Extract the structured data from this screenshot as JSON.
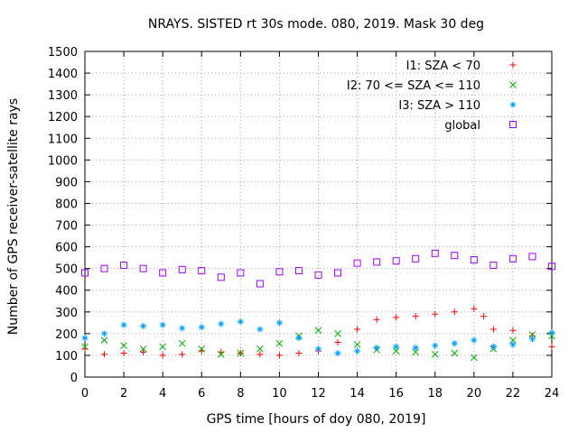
{
  "chart_data": {
    "type": "scatter",
    "title": "NRAYS. SISTED rt 30s mode. 080, 2019. Mask 30 deg",
    "xlabel": "GPS time [hours of doy 080, 2019]",
    "ylabel": "Number of GPS receiver-satellite rays",
    "xlim": [
      0,
      24
    ],
    "ylim": [
      0,
      1500
    ],
    "xticks": [
      0,
      2,
      4,
      6,
      8,
      10,
      12,
      14,
      16,
      18,
      20,
      22,
      24
    ],
    "yticks": [
      0,
      100,
      200,
      300,
      400,
      500,
      600,
      700,
      800,
      900,
      1000,
      1100,
      1200,
      1300,
      1400,
      1500
    ],
    "grid": true,
    "legend_position": "top-right",
    "series": [
      {
        "name": "I1: SZA < 70",
        "color": "#ff0000",
        "marker": "+",
        "x": [
          0,
          1,
          2,
          3,
          4,
          5,
          6,
          7,
          8,
          9,
          10,
          11,
          12,
          13,
          14,
          15,
          16,
          17,
          18,
          19,
          20,
          20.5,
          21,
          22,
          23,
          24
        ],
        "y": [
          130,
          105,
          110,
          115,
          100,
          105,
          120,
          115,
          110,
          105,
          100,
          110,
          120,
          160,
          220,
          265,
          275,
          280,
          290,
          300,
          315,
          280,
          220,
          215,
          190,
          140
        ]
      },
      {
        "name": "I2: 70 <= SZA <= 110",
        "color": "#00b000",
        "marker": "x",
        "x": [
          0,
          1,
          2,
          3,
          4,
          5,
          6,
          7,
          8,
          9,
          10,
          11,
          12,
          13,
          14,
          15,
          16,
          17,
          18,
          19,
          20,
          21,
          22,
          23,
          24
        ],
        "y": [
          140,
          170,
          145,
          130,
          140,
          155,
          130,
          105,
          110,
          130,
          155,
          190,
          215,
          200,
          150,
          125,
          120,
          115,
          105,
          110,
          90,
          130,
          170,
          195,
          190
        ]
      },
      {
        "name": "I3: SZA > 110",
        "color": "#00a0ff",
        "marker": "*",
        "x": [
          0,
          1,
          2,
          3,
          4,
          5,
          6,
          7,
          8,
          9,
          10,
          11,
          12,
          13,
          14,
          15,
          16,
          17,
          18,
          19,
          20,
          21,
          22,
          23,
          24
        ],
        "y": [
          180,
          200,
          240,
          235,
          240,
          225,
          230,
          245,
          255,
          220,
          250,
          180,
          130,
          110,
          120,
          135,
          140,
          135,
          145,
          155,
          170,
          140,
          150,
          175,
          205
        ]
      },
      {
        "name": "global",
        "color": "#a000ff",
        "marker": "square",
        "x": [
          0,
          1,
          2,
          3,
          4,
          5,
          6,
          7,
          8,
          9,
          10,
          11,
          12,
          13,
          14,
          15,
          16,
          17,
          18,
          19,
          20,
          21,
          22,
          23,
          24
        ],
        "y": [
          480,
          500,
          515,
          500,
          480,
          495,
          490,
          460,
          480,
          430,
          485,
          490,
          470,
          480,
          525,
          530,
          535,
          545,
          570,
          560,
          540,
          515,
          545,
          555,
          510
        ]
      }
    ]
  }
}
